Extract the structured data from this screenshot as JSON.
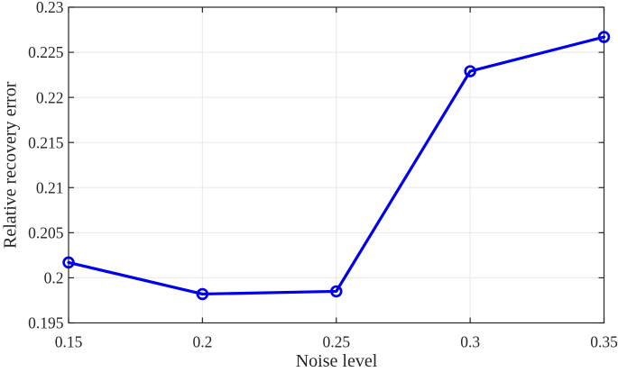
{
  "figure": {
    "background": "#ffffff"
  },
  "chart_data": {
    "type": "line",
    "title": "",
    "xlabel": "Noise level",
    "ylabel": "Relative recovery error",
    "x": [
      0.15,
      0.2,
      0.25,
      0.3,
      0.35
    ],
    "series": [
      {
        "name": "relative recovery error vs noise level",
        "marker": "open-circle",
        "values": [
          0.2017,
          0.1982,
          0.1985,
          0.2229,
          0.2267
        ]
      }
    ],
    "xlim": [
      0.15,
      0.35
    ],
    "ylim": [
      0.195,
      0.23
    ],
    "x_ticks": {
      "values": [
        0.15,
        0.2,
        0.25,
        0.3,
        0.35
      ],
      "labels": [
        "0.15",
        "0.2",
        "0.25",
        "0.3",
        "0.35"
      ]
    },
    "y_ticks": {
      "values": [
        0.195,
        0.2,
        0.205,
        0.21,
        0.215,
        0.22,
        0.225,
        0.23
      ],
      "labels": [
        "0.195",
        "0.2",
        "0.205",
        "0.21",
        "0.215",
        "0.22",
        "0.225",
        "0.23"
      ]
    },
    "grid": true,
    "legend": "none",
    "box": true,
    "tick_direction": "in",
    "colors": {
      "line": "#0000EE",
      "axis": "#262626",
      "grid": "#e8e8e8",
      "text": "#262626",
      "background": "#ffffff"
    }
  }
}
